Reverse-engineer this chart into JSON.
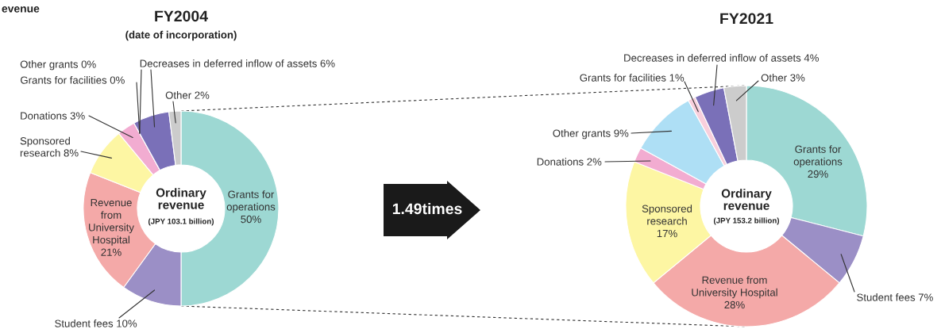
{
  "chart_data": [
    {
      "type": "donut",
      "title": "FY2004",
      "subtitle": "(date of incorporation)",
      "categories": [
        "Grants for\noperations",
        "Student fees",
        "Revenue\nfrom\nUniversity\nHospital",
        "Sponsored\nresearch",
        "Donations",
        "Grants for facilities",
        "Other grants",
        "Decreases in deferred inflow of assets",
        "Other"
      ],
      "values": [
        50,
        10,
        21,
        8,
        3,
        0,
        0,
        6,
        2
      ],
      "value_labels": [
        "50%",
        "10%",
        "21%",
        "8%",
        "3%",
        "0%",
        "0%",
        "6%",
        "2%"
      ],
      "colors": [
        "#9dd8d3",
        "#9b8fc6",
        "#f4a9a8",
        "#fdf6a3",
        "#f2acd1",
        "#f8cfdc",
        "#aedff5",
        "#7a70b8",
        "#cccccc"
      ],
      "annotations": [
        "Ordinary\nrevenue",
        "(JPY 103.1 billion)",
        "evenue",
        "1.49times"
      ]
    },
    {
      "type": "donut",
      "title": "FY2021",
      "categories": [
        "Grants for\noperations",
        "Student fees",
        "Revenue from\nUniversity Hospital",
        "Sponsored\nresearch",
        "Donations",
        "Other grants",
        "Grants for facilities",
        "Decreases in deferred inflow of assets",
        "Other"
      ],
      "values": [
        29,
        7,
        28,
        17,
        2,
        9,
        1,
        4,
        3
      ],
      "value_labels": [
        "29%",
        "7%",
        "28%",
        "17%",
        "2%",
        "9%",
        "1%",
        "4%",
        "3%"
      ],
      "colors": [
        "#9dd8d3",
        "#9b8fc6",
        "#f4a9a8",
        "#fdf6a3",
        "#f2acd1",
        "#aedff5",
        "#f8cfdc",
        "#7a70b8",
        "#cccccc"
      ],
      "annotations": [
        "Ordinary\nrevenue",
        "(JPY 153.2 billion)"
      ]
    }
  ]
}
